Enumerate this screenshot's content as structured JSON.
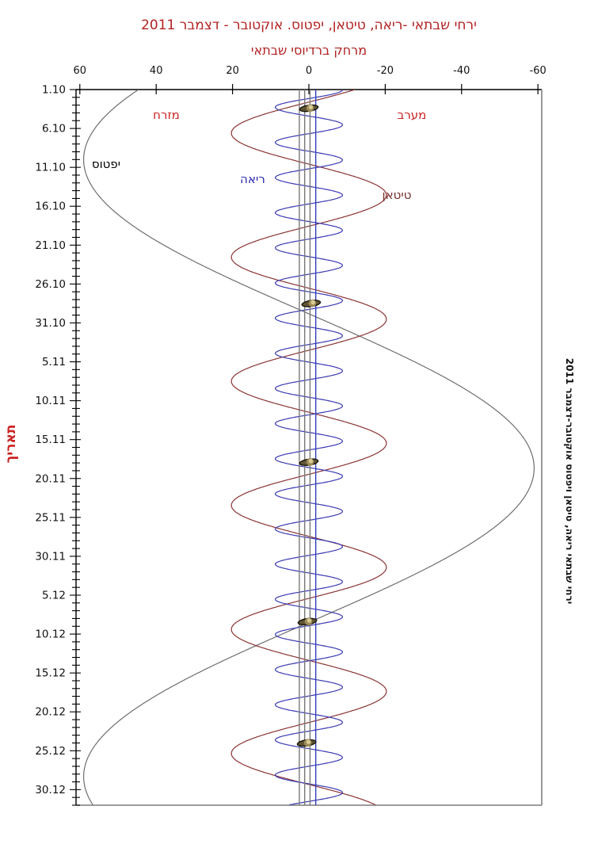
{
  "header": {
    "title": "ירחי שבתאי -ריאה, טיטאן, יפטוס. אוקטובר - דצמבר 2011",
    "subtitle": "מרחק ברדיוסי שבתאי"
  },
  "direction_labels": {
    "east": "מזרח",
    "west": "מערב"
  },
  "date_axis_label": "תאריך",
  "side_caption": "ירחי שבתאי ריאה, טיטאן ויפטוס אוקטובר-דצמבר 2011",
  "colors": {
    "title": "#b22222",
    "direction_labels": "#cc2222",
    "axis": "#000000",
    "frame_gray": "#8e8e8e"
  },
  "chart_data": {
    "type": "line",
    "title": "ירחי שבתאי -ריאה, טיטאן, יפטוס. אוקטובר - דצמבר 2011",
    "subtitle": "מרחק ברדיוסי שבתאי",
    "orientation": "vertical-time",
    "x_axis": {
      "label": "מרחק ברדיוסי שבתאי",
      "ticks": [
        60,
        40,
        20,
        0,
        -20,
        -40,
        -60
      ],
      "range": [
        61,
        -61
      ],
      "positive_side_label": "מזרח",
      "negative_side_label": "מערב"
    },
    "y_axis": {
      "label": "תאריך",
      "tick_labels": [
        "1.10",
        "6.10",
        "11.10",
        "16.10",
        "21.10",
        "26.10",
        "31.10",
        "5.11",
        "10.11",
        "15.11",
        "20.11",
        "25.11",
        "30.11",
        "5.12",
        "10.12",
        "15.12",
        "20.12",
        "25.12",
        "30.12"
      ],
      "tick_days": [
        0,
        5,
        10,
        15,
        20,
        25,
        30,
        35,
        40,
        45,
        50,
        55,
        60,
        65,
        70,
        75,
        80,
        85,
        90
      ],
      "minor_tick_step_days": 1,
      "range_days": [
        0,
        92
      ]
    },
    "series": [
      {
        "id": "iapetus",
        "name": "יפטוס",
        "color": "#6e6e6e",
        "period_days": 79.33,
        "amplitude_radii": 59.0,
        "east_max_day": 9.0
      },
      {
        "id": "titan",
        "name": "טיטאן",
        "color": "#8b3434",
        "period_days": 15.95,
        "amplitude_radii": 20.3,
        "east_max_day": 5.6
      },
      {
        "id": "rhea",
        "name": "ריאה",
        "color": "#3b3bb4",
        "period_days": 4.518,
        "amplitude_radii": 8.8,
        "east_max_day": 6.8
      }
    ],
    "reference_lines": [
      {
        "x": 2.5,
        "color": "#787878"
      },
      {
        "x": 1.1,
        "color": "#787878"
      },
      {
        "x": -0.3,
        "color": "#787878"
      },
      {
        "x": -1.8,
        "color": "#3340b8"
      }
    ],
    "saturn_markers": [
      {
        "day": 2.4,
        "x": 0.0
      },
      {
        "day": 27.5,
        "x": -0.6
      },
      {
        "day": 47.9,
        "x": 0.0
      },
      {
        "day": 68.4,
        "x": 0.4
      },
      {
        "day": 84.0,
        "x": 0.6
      }
    ]
  }
}
